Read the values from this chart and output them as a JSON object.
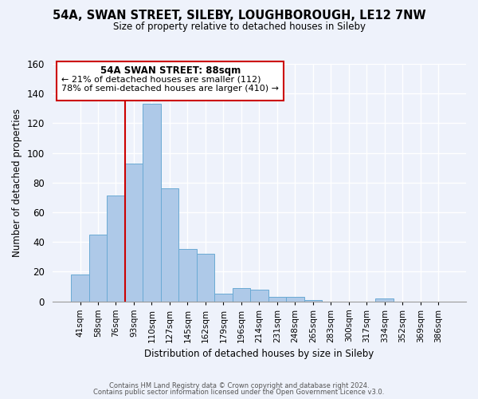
{
  "title": "54A, SWAN STREET, SILEBY, LOUGHBOROUGH, LE12 7NW",
  "subtitle": "Size of property relative to detached houses in Sileby",
  "xlabel": "Distribution of detached houses by size in Sileby",
  "ylabel": "Number of detached properties",
  "bar_labels": [
    "41sqm",
    "58sqm",
    "76sqm",
    "93sqm",
    "110sqm",
    "127sqm",
    "145sqm",
    "162sqm",
    "179sqm",
    "196sqm",
    "214sqm",
    "231sqm",
    "248sqm",
    "265sqm",
    "283sqm",
    "300sqm",
    "317sqm",
    "334sqm",
    "352sqm",
    "369sqm",
    "386sqm"
  ],
  "bar_values": [
    18,
    45,
    71,
    93,
    133,
    76,
    35,
    32,
    5,
    9,
    8,
    3,
    3,
    1,
    0,
    0,
    0,
    2,
    0,
    0,
    0
  ],
  "bar_color": "#aec9e8",
  "bar_edge_color": "#6aaad4",
  "vline_color": "#cc0000",
  "annotation_title": "54A SWAN STREET: 88sqm",
  "annotation_line1": "← 21% of detached houses are smaller (112)",
  "annotation_line2": "78% of semi-detached houses are larger (410) →",
  "ylim": [
    0,
    160
  ],
  "yticks": [
    0,
    20,
    40,
    60,
    80,
    100,
    120,
    140,
    160
  ],
  "footer_line1": "Contains HM Land Registry data © Crown copyright and database right 2024.",
  "footer_line2": "Contains public sector information licensed under the Open Government Licence v3.0.",
  "background_color": "#eef2fb",
  "grid_color": "#ffffff",
  "vline_x_idx": 2.5
}
